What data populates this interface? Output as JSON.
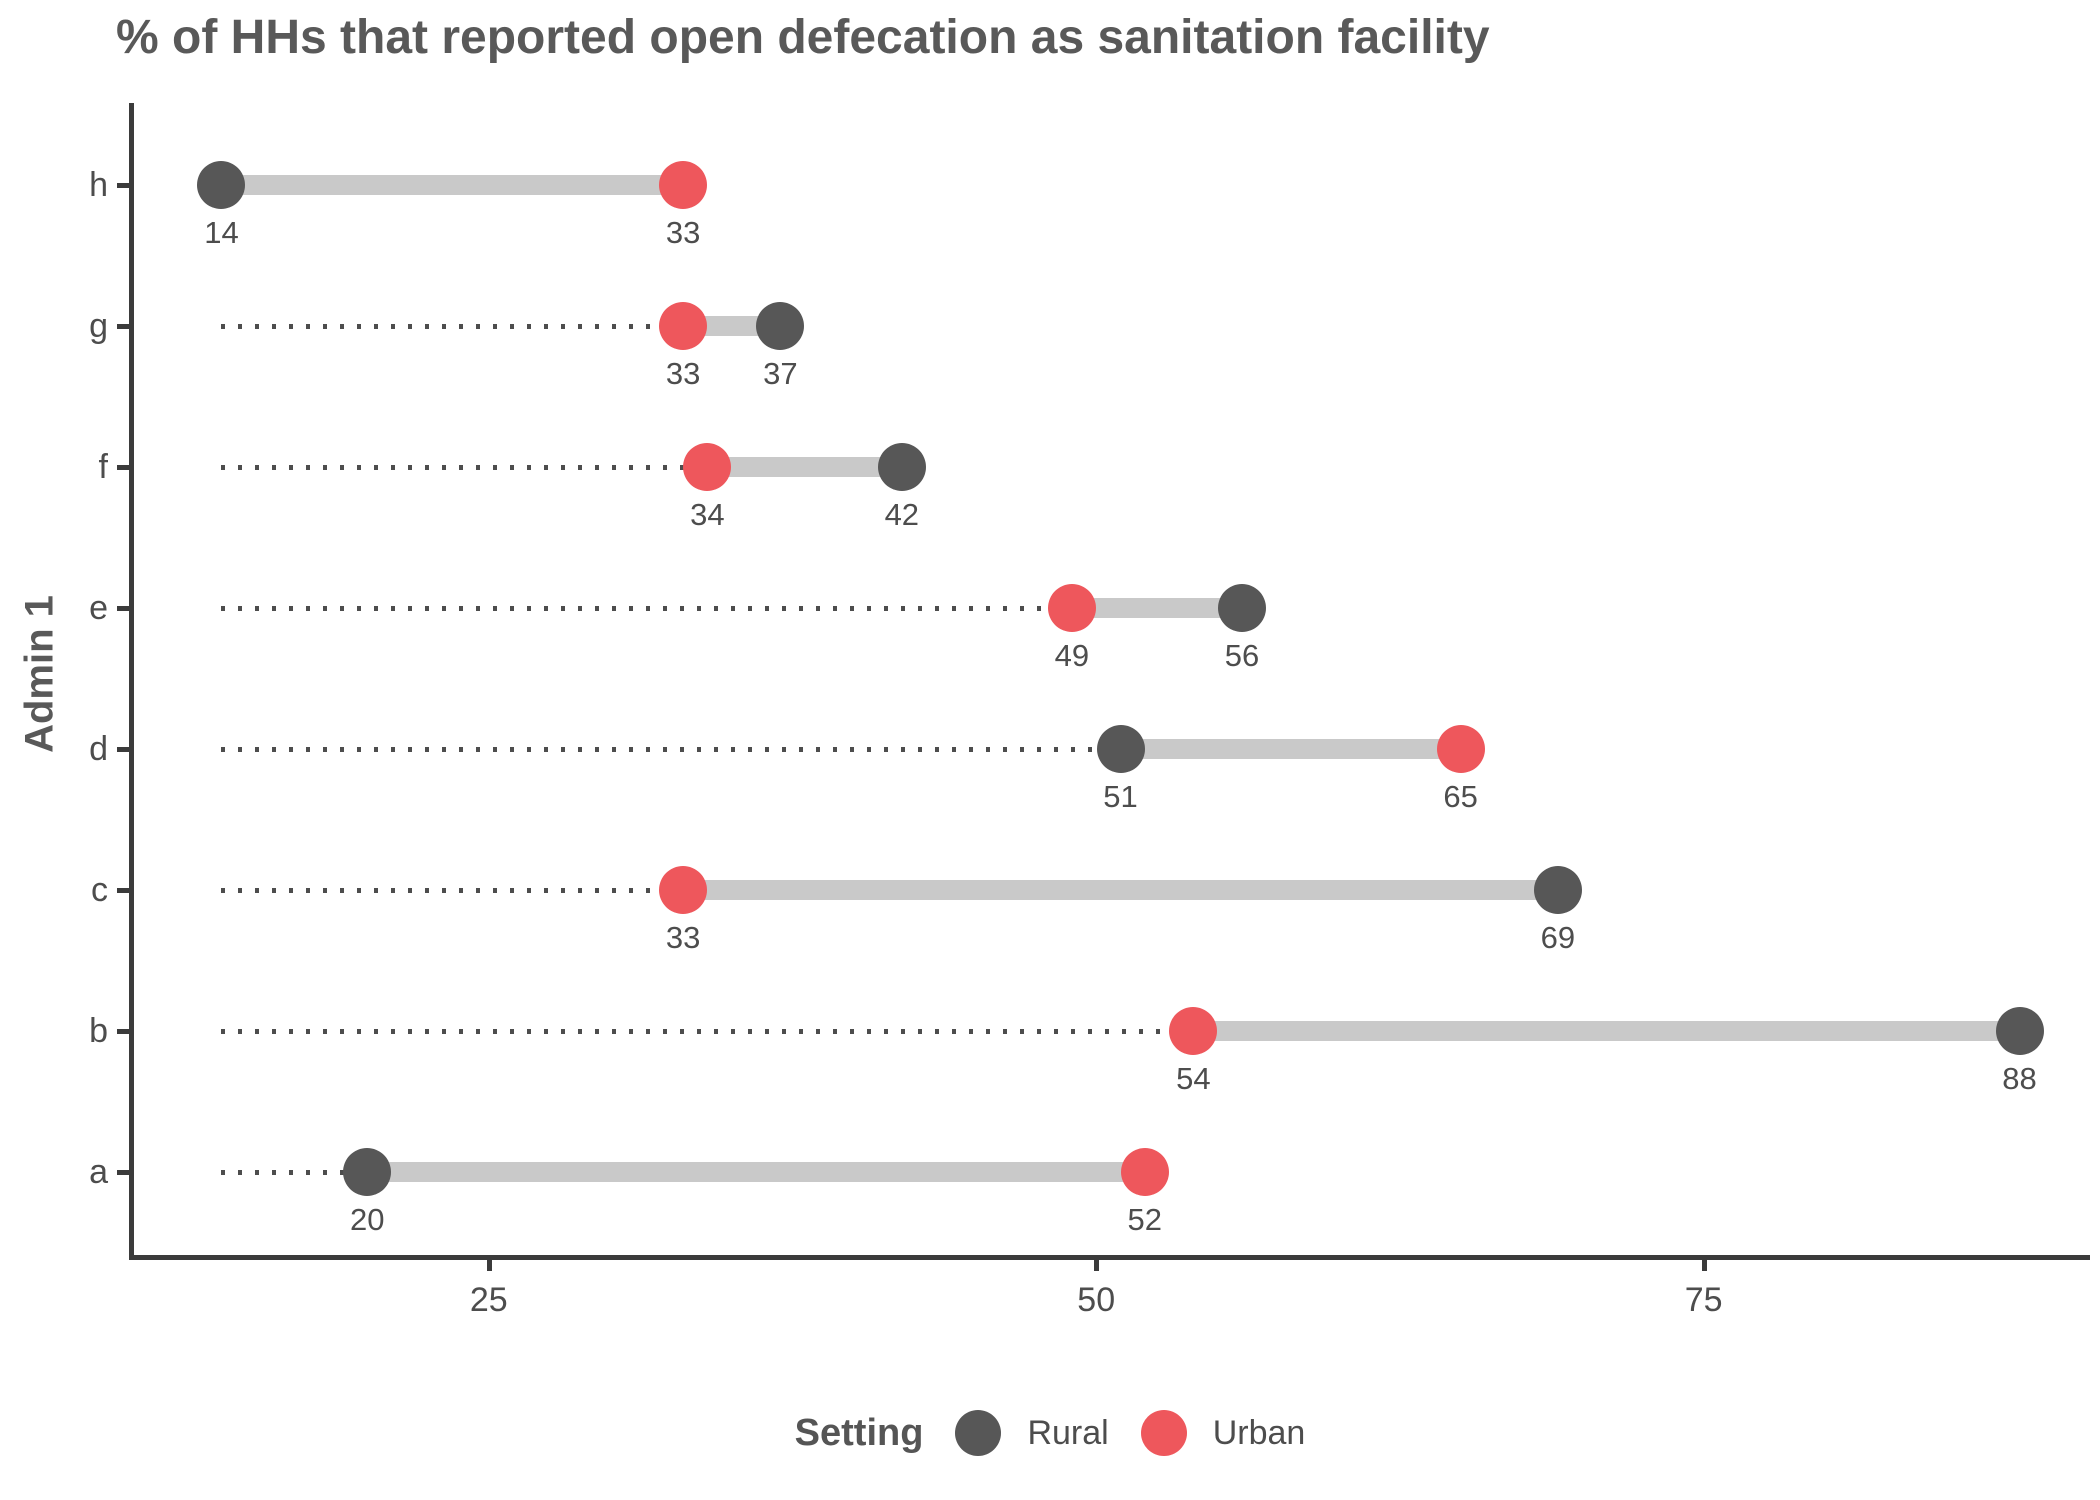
{
  "title": "% of HHs that reported open defecation as sanitation facility",
  "legend": {
    "title": "Setting",
    "items": [
      {
        "label": "Rural",
        "color": "#575757"
      },
      {
        "label": "Urban",
        "color": "#EE575C"
      }
    ]
  },
  "colors": {
    "rural": "#575757",
    "urban": "#EE575C",
    "connector_band": "#C9C9C9",
    "leader_dots": "#4D4D4D",
    "axis": "#3B3B3B",
    "text": "#4D4D4D",
    "title_text": "#595959"
  },
  "chart_data": {
    "type": "dumbbell",
    "title": "% of HHs that reported open defecation as sanitation facility",
    "xlabel": "",
    "ylabel": "Admin 1",
    "xlim": [
      10.4,
      90.9
    ],
    "xticks": [
      25,
      50,
      75
    ],
    "grid": false,
    "legend_position": "bottom",
    "leader_line_start": 14,
    "categories_top_to_bottom": [
      "h",
      "g",
      "f",
      "e",
      "d",
      "c",
      "b",
      "a"
    ],
    "rows": [
      {
        "category": "h",
        "rural": 14,
        "urban": 33
      },
      {
        "category": "g",
        "rural": 37,
        "urban": 33
      },
      {
        "category": "f",
        "rural": 42,
        "urban": 34
      },
      {
        "category": "e",
        "rural": 56,
        "urban": 49
      },
      {
        "category": "d",
        "rural": 51,
        "urban": 65
      },
      {
        "category": "c",
        "rural": 69,
        "urban": 33
      },
      {
        "category": "b",
        "rural": 88,
        "urban": 54
      },
      {
        "category": "a",
        "rural": 20,
        "urban": 52
      }
    ]
  }
}
